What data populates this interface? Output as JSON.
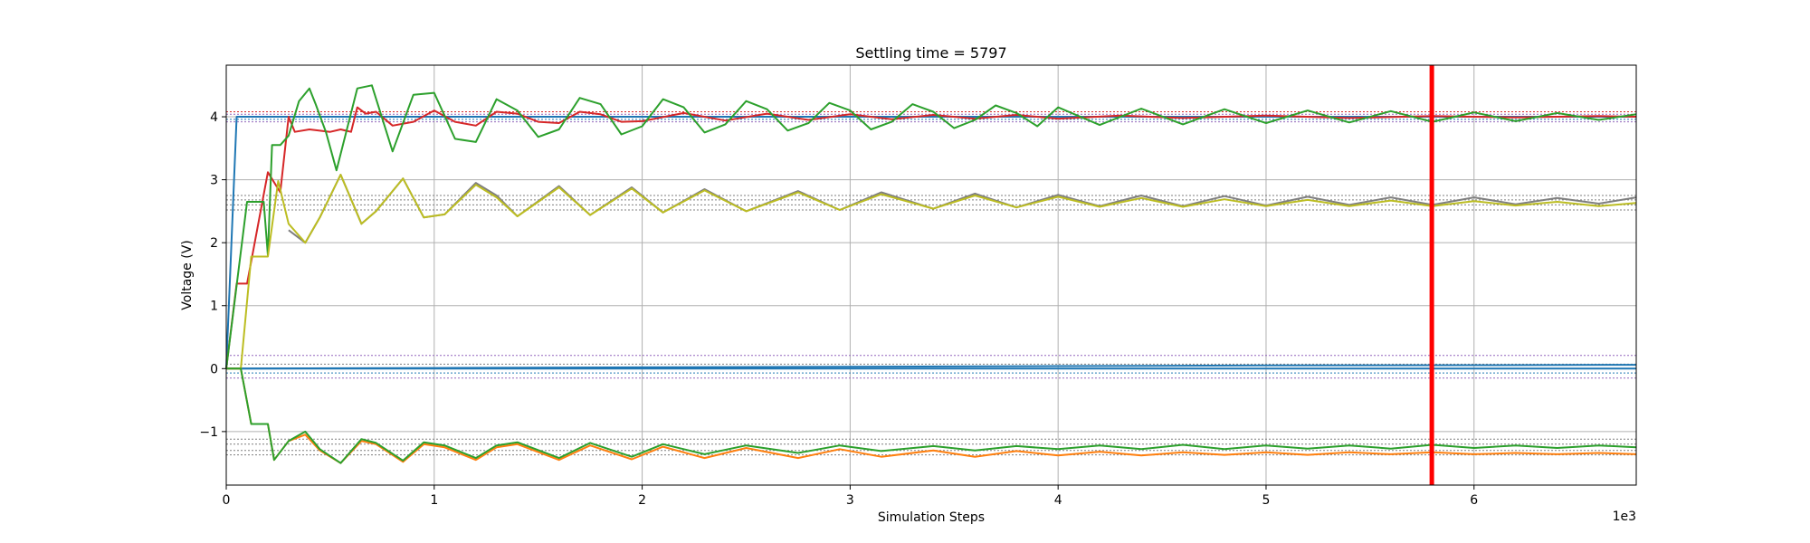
{
  "chart_data": {
    "type": "line",
    "title": "Settling time = 5797",
    "xlabel": "Simulation Steps",
    "ylabel": "Voltage (V)",
    "x_offset_text": "1e3",
    "xlim": [
      0,
      6.78
    ],
    "ylim": [
      -1.85,
      4.82
    ],
    "x_ticks": [
      0,
      1,
      2,
      3,
      4,
      5,
      6
    ],
    "x_tick_labels": [
      "0",
      "1",
      "2",
      "3",
      "4",
      "5",
      "6"
    ],
    "y_ticks": [
      -1,
      0,
      1,
      2,
      3,
      4
    ],
    "y_tick_labels": [
      "−1",
      "0",
      "1",
      "2",
      "3",
      "4"
    ],
    "grid": true,
    "settling_time": 5.797,
    "settling_line_color": "#ff0000",
    "reference_lines": [
      {
        "y": 4.08,
        "color": "#d62728"
      },
      {
        "y": 4.04,
        "color": "#9467bd"
      },
      {
        "y": 3.96,
        "color": "#1f77b4"
      },
      {
        "y": 3.92,
        "color": "#9467bd"
      },
      {
        "y": 2.75,
        "color": "#7f7f7f"
      },
      {
        "y": 2.68,
        "color": "#7f7f7f"
      },
      {
        "y": 2.6,
        "color": "#7f7f7f"
      },
      {
        "y": 2.52,
        "color": "#7f7f7f"
      },
      {
        "y": 0.21,
        "color": "#9467bd"
      },
      {
        "y": 0.07,
        "color": "#7f7f7f"
      },
      {
        "y": -0.07,
        "color": "#1f77b4"
      },
      {
        "y": -0.15,
        "color": "#9467bd"
      },
      {
        "y": -1.12,
        "color": "#7f7f7f"
      },
      {
        "y": -1.2,
        "color": "#7f7f7f"
      },
      {
        "y": -1.3,
        "color": "#7f7f7f"
      },
      {
        "y": -1.37,
        "color": "#7f7f7f"
      }
    ],
    "series": [
      {
        "color": "#1f77b4",
        "x": [
          0,
          0.05,
          6.78
        ],
        "y": [
          0,
          4.0,
          4.0
        ]
      },
      {
        "color": "#1f77b4",
        "x": [
          0,
          1,
          2,
          3,
          4,
          5,
          6,
          6.78
        ],
        "y": [
          0,
          0.01,
          0.02,
          0.03,
          0.04,
          0.05,
          0.055,
          0.06
        ]
      },
      {
        "color": "#1f77b4",
        "x": [
          0,
          6.78
        ],
        "y": [
          0,
          0.0
        ]
      },
      {
        "color": "#d62728",
        "x": [
          0,
          0.05,
          0.1,
          0.2,
          0.26,
          0.3,
          0.33,
          0.4,
          0.5,
          0.55,
          0.6,
          0.63,
          0.67,
          0.72,
          0.8,
          0.9,
          1.0,
          1.1,
          1.2,
          1.3,
          1.4,
          1.5,
          1.6,
          1.7,
          1.8,
          1.9,
          2.0,
          2.2,
          2.4,
          2.6,
          2.8,
          3.0,
          3.2,
          3.4,
          3.6,
          3.8,
          4.0,
          4.3,
          4.6,
          5.0,
          5.4,
          5.8,
          6.2,
          6.6,
          6.78
        ],
        "y": [
          0,
          1.35,
          1.35,
          3.12,
          2.8,
          4.0,
          3.76,
          3.8,
          3.76,
          3.8,
          3.76,
          4.15,
          4.05,
          4.08,
          3.86,
          3.92,
          4.1,
          3.92,
          3.86,
          4.08,
          4.05,
          3.92,
          3.9,
          4.08,
          4.04,
          3.92,
          3.93,
          4.06,
          3.94,
          4.05,
          3.95,
          4.04,
          3.96,
          4.03,
          3.97,
          4.03,
          3.97,
          4.02,
          3.98,
          4.02,
          3.98,
          4.01,
          3.99,
          4.01,
          4.0
        ]
      },
      {
        "color": "#2ca02c",
        "x": [
          0,
          0.1,
          0.12,
          0.18,
          0.2,
          0.22,
          0.24,
          0.26,
          0.3,
          0.35,
          0.4,
          0.43,
          0.48,
          0.53,
          0.58,
          0.63,
          0.7,
          0.8,
          0.9,
          1.0,
          1.1,
          1.2,
          1.3,
          1.4,
          1.5,
          1.6,
          1.7,
          1.8,
          1.9,
          2.0,
          2.1,
          2.2,
          2.3,
          2.4,
          2.5,
          2.6,
          2.7,
          2.8,
          2.9,
          3.0,
          3.1,
          3.2,
          3.3,
          3.4,
          3.5,
          3.6,
          3.7,
          3.8,
          3.9,
          4.0,
          4.2,
          4.4,
          4.6,
          4.8,
          5.0,
          5.2,
          5.4,
          5.6,
          5.8,
          6.0,
          6.2,
          6.4,
          6.6,
          6.78
        ],
        "y": [
          0,
          2.65,
          2.65,
          2.65,
          1.8,
          3.55,
          3.55,
          3.55,
          3.7,
          4.25,
          4.45,
          4.2,
          3.75,
          3.15,
          3.8,
          4.45,
          4.5,
          3.45,
          4.35,
          4.38,
          3.65,
          3.6,
          4.28,
          4.1,
          3.68,
          3.8,
          4.3,
          4.2,
          3.72,
          3.85,
          4.28,
          4.15,
          3.75,
          3.88,
          4.25,
          4.12,
          3.78,
          3.9,
          4.22,
          4.1,
          3.8,
          3.92,
          4.2,
          4.08,
          3.82,
          3.95,
          4.18,
          4.06,
          3.85,
          4.15,
          3.87,
          4.13,
          3.88,
          4.12,
          3.9,
          4.1,
          3.91,
          4.09,
          3.92,
          4.07,
          3.93,
          4.06,
          3.95,
          4.04
        ]
      },
      {
        "color": "#7f7f7f",
        "x": [
          0.3,
          0.38,
          0.45,
          0.55,
          0.65,
          0.72,
          0.85,
          0.95,
          1.05,
          1.2,
          1.3,
          1.4,
          1.6,
          1.75,
          1.95,
          2.1,
          2.3,
          2.5,
          2.75,
          2.95,
          3.15,
          3.4,
          3.6,
          3.8,
          4.0,
          4.2,
          4.4,
          4.6,
          4.8,
          5.0,
          5.2,
          5.4,
          5.6,
          5.8,
          6.0,
          6.2,
          6.4,
          6.6,
          6.78
        ],
        "y": [
          2.2,
          2.0,
          2.4,
          3.08,
          2.3,
          2.5,
          3.02,
          2.4,
          2.45,
          2.95,
          2.75,
          2.42,
          2.9,
          2.44,
          2.88,
          2.48,
          2.85,
          2.5,
          2.82,
          2.52,
          2.8,
          2.54,
          2.78,
          2.56,
          2.76,
          2.58,
          2.75,
          2.58,
          2.74,
          2.59,
          2.73,
          2.6,
          2.72,
          2.6,
          2.72,
          2.61,
          2.71,
          2.62,
          2.72
        ]
      },
      {
        "color": "#bcbd22",
        "x": [
          0,
          0.05,
          0.07,
          0.12,
          0.2,
          0.25,
          0.3,
          0.38,
          0.45,
          0.55,
          0.65,
          0.72,
          0.85,
          0.95,
          1.05,
          1.2,
          1.3,
          1.4,
          1.6,
          1.75,
          1.95,
          2.1,
          2.3,
          2.5,
          2.75,
          2.95,
          3.15,
          3.4,
          3.6,
          3.8,
          4.0,
          4.2,
          4.4,
          4.6,
          4.8,
          5.0,
          5.2,
          5.4,
          5.6,
          5.8,
          6.0,
          6.2,
          6.4,
          6.6,
          6.78
        ],
        "y": [
          0,
          0,
          0,
          1.78,
          1.78,
          2.98,
          2.3,
          2.0,
          2.4,
          3.08,
          2.3,
          2.5,
          3.02,
          2.4,
          2.45,
          2.92,
          2.72,
          2.42,
          2.88,
          2.44,
          2.86,
          2.48,
          2.83,
          2.5,
          2.8,
          2.52,
          2.77,
          2.54,
          2.75,
          2.56,
          2.73,
          2.57,
          2.71,
          2.57,
          2.69,
          2.58,
          2.68,
          2.58,
          2.67,
          2.58,
          2.66,
          2.59,
          2.65,
          2.58,
          2.63
        ]
      },
      {
        "color": "#ff7f0e",
        "x": [
          0,
          0.05,
          0.07,
          0.12,
          0.2,
          0.23,
          0.3,
          0.38,
          0.45,
          0.55,
          0.65,
          0.72,
          0.85,
          0.95,
          1.05,
          1.2,
          1.3,
          1.4,
          1.6,
          1.75,
          1.95,
          2.1,
          2.3,
          2.5,
          2.75,
          2.95,
          3.15,
          3.4,
          3.6,
          3.8,
          4.0,
          4.2,
          4.4,
          4.6,
          4.8,
          5.0,
          5.2,
          5.4,
          5.6,
          5.8,
          6.0,
          6.2,
          6.4,
          6.6,
          6.78
        ],
        "y": [
          0,
          0,
          0,
          -0.88,
          -0.88,
          -1.45,
          -1.15,
          -1.05,
          -1.3,
          -1.5,
          -1.15,
          -1.2,
          -1.48,
          -1.2,
          -1.25,
          -1.45,
          -1.25,
          -1.2,
          -1.45,
          -1.22,
          -1.44,
          -1.24,
          -1.42,
          -1.26,
          -1.42,
          -1.28,
          -1.4,
          -1.3,
          -1.4,
          -1.31,
          -1.38,
          -1.32,
          -1.38,
          -1.33,
          -1.37,
          -1.33,
          -1.37,
          -1.33,
          -1.36,
          -1.33,
          -1.36,
          -1.34,
          -1.36,
          -1.34,
          -1.36
        ]
      },
      {
        "color": "#2ca02c",
        "x": [
          0,
          0.05,
          0.07,
          0.12,
          0.2,
          0.23,
          0.3,
          0.38,
          0.45,
          0.55,
          0.65,
          0.72,
          0.85,
          0.95,
          1.05,
          1.2,
          1.3,
          1.4,
          1.6,
          1.75,
          1.95,
          2.1,
          2.3,
          2.5,
          2.75,
          2.95,
          3.15,
          3.4,
          3.6,
          3.8,
          4.0,
          4.2,
          4.4,
          4.6,
          4.8,
          5.0,
          5.2,
          5.4,
          5.6,
          5.8,
          6.0,
          6.2,
          6.4,
          6.6,
          6.78
        ],
        "y": [
          0,
          0,
          0,
          -0.88,
          -0.88,
          -1.45,
          -1.15,
          -1.0,
          -1.28,
          -1.5,
          -1.12,
          -1.18,
          -1.46,
          -1.17,
          -1.22,
          -1.42,
          -1.22,
          -1.17,
          -1.42,
          -1.18,
          -1.4,
          -1.2,
          -1.36,
          -1.22,
          -1.34,
          -1.22,
          -1.31,
          -1.23,
          -1.3,
          -1.23,
          -1.28,
          -1.22,
          -1.28,
          -1.21,
          -1.28,
          -1.22,
          -1.27,
          -1.22,
          -1.27,
          -1.21,
          -1.26,
          -1.22,
          -1.26,
          -1.22,
          -1.25
        ]
      }
    ]
  }
}
